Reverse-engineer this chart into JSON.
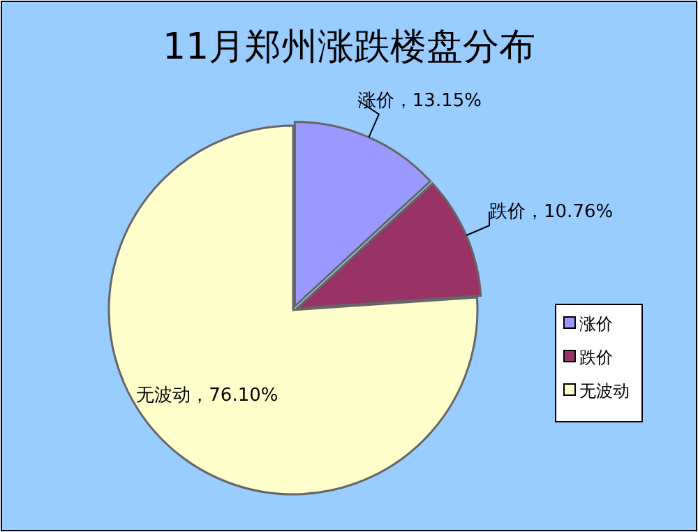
{
  "chart_data": {
    "type": "pie",
    "title": "11月郑州涨跌楼盘分布",
    "categories": [
      "涨价",
      "跌价",
      "无波动"
    ],
    "values": [
      13.15,
      10.76,
      76.1
    ],
    "colors": [
      "#9999ff",
      "#993366",
      "#ffffcc"
    ],
    "value_labels": [
      "涨价，13.15%",
      "跌价，10.76%",
      "无波动，76.10%"
    ],
    "legend": "right"
  }
}
